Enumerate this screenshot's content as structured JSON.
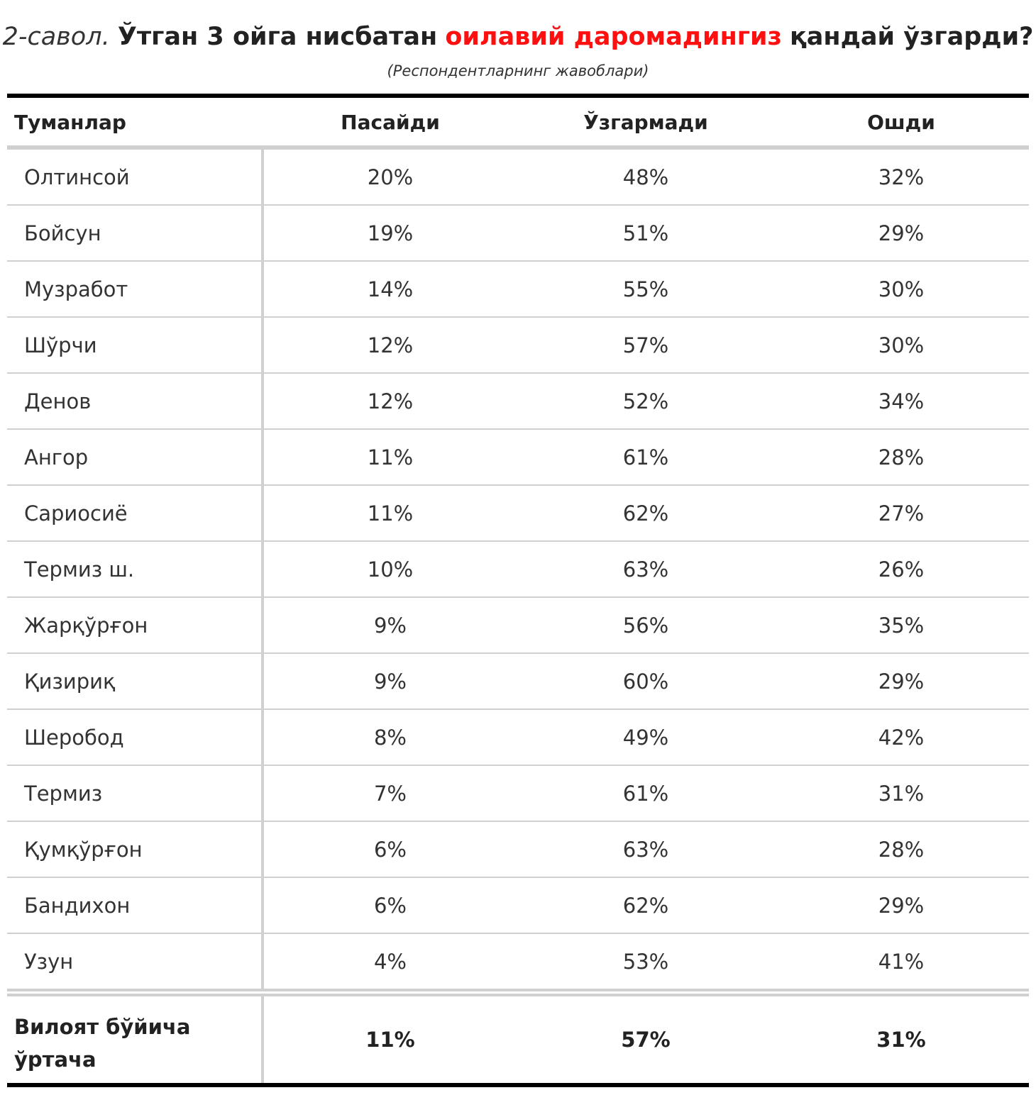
{
  "chart_data": {
    "type": "table",
    "title": {
      "num": "2-савол.",
      "main_before": "Ўтган 3 ойга нисбатан",
      "accent": "оилавий даромадингиз",
      "main_after": "қандай ўзгарди?"
    },
    "subtitle": "(Респондентларнинг жавоблари)",
    "columns": [
      "Туманлар",
      "Пасайди",
      "Ўзгармади",
      "Ошди"
    ],
    "rows": [
      {
        "name": "Олтинсой",
        "values": [
          "20%",
          "48%",
          "32%"
        ]
      },
      {
        "name": "Бойсун",
        "values": [
          "19%",
          "51%",
          "29%"
        ]
      },
      {
        "name": "Музработ",
        "values": [
          "14%",
          "55%",
          "30%"
        ]
      },
      {
        "name": "Шўрчи",
        "values": [
          "12%",
          "57%",
          "30%"
        ]
      },
      {
        "name": "Денов",
        "values": [
          "12%",
          "52%",
          "34%"
        ]
      },
      {
        "name": "Ангор",
        "values": [
          "11%",
          "61%",
          "28%"
        ]
      },
      {
        "name": "Сариосиё",
        "values": [
          "11%",
          "62%",
          "27%"
        ]
      },
      {
        "name": "Термиз ш.",
        "values": [
          "10%",
          "63%",
          "26%"
        ]
      },
      {
        "name": "Жарқўрғон",
        "values": [
          "9%",
          "56%",
          "35%"
        ]
      },
      {
        "name": "Қизириқ",
        "values": [
          "9%",
          "60%",
          "29%"
        ]
      },
      {
        "name": "Шеробод",
        "values": [
          "8%",
          "49%",
          "42%"
        ]
      },
      {
        "name": "Термиз",
        "values": [
          "7%",
          "61%",
          "31%"
        ]
      },
      {
        "name": "Қумқўрғон",
        "values": [
          "6%",
          "63%",
          "28%"
        ]
      },
      {
        "name": "Бандихон",
        "values": [
          "6%",
          "62%",
          "29%"
        ]
      },
      {
        "name": "Узун",
        "values": [
          "4%",
          "53%",
          "41%"
        ]
      }
    ],
    "total": {
      "name": "Вилоят бўйича ўртача",
      "values": [
        "11%",
        "57%",
        "31%"
      ]
    },
    "colors": {
      "accent": "#ff1010",
      "rule": "#000000",
      "grid": "#d0d0d0"
    }
  }
}
